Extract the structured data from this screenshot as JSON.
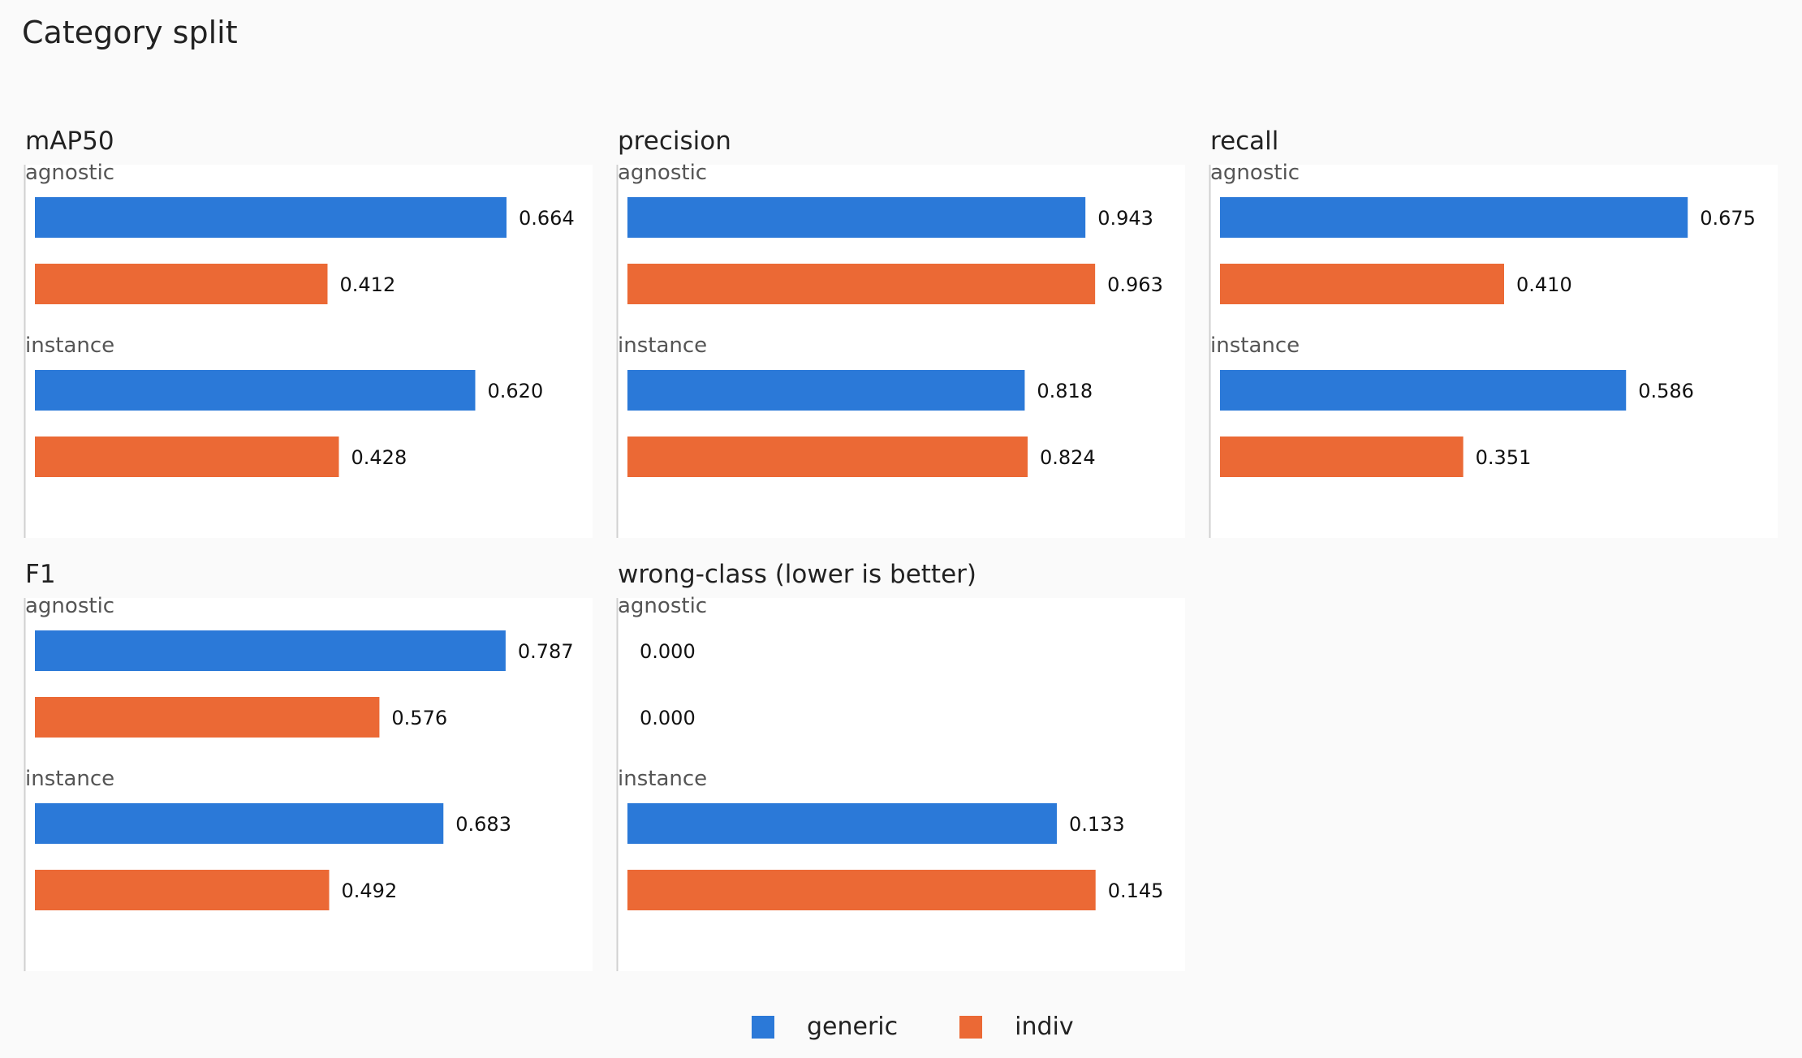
{
  "title": "Category split",
  "colors": {
    "generic": "#2b79d8",
    "indiv": "#eb6935",
    "panel_bg": "#ffffff",
    "page_bg": "#fafafa",
    "axis": "#d0d0d0",
    "group_label": "#555555",
    "value_label": "#111111"
  },
  "legend": {
    "items": [
      {
        "name": "generic",
        "color": "#2b79d8"
      },
      {
        "name": "indiv",
        "color": "#eb6935"
      }
    ]
  },
  "chart_data": [
    {
      "type": "bar",
      "orientation": "horizontal",
      "title": "mAP50",
      "categories": [
        "agnostic",
        "instance"
      ],
      "series": [
        {
          "name": "generic",
          "values": [
            0.664,
            0.62
          ]
        },
        {
          "name": "indiv",
          "values": [
            0.412,
            0.428
          ]
        }
      ],
      "labels": [
        [
          "0.664",
          "0.412"
        ],
        [
          "0.620",
          "0.428"
        ]
      ],
      "xlim": [
        0,
        0.8
      ]
    },
    {
      "type": "bar",
      "orientation": "horizontal",
      "title": "precision",
      "categories": [
        "agnostic",
        "instance"
      ],
      "series": [
        {
          "name": "generic",
          "values": [
            0.943,
            0.818
          ]
        },
        {
          "name": "indiv",
          "values": [
            0.963,
            0.824
          ]
        }
      ],
      "labels": [
        [
          "0.943",
          "0.963"
        ],
        [
          "0.818",
          "0.824"
        ]
      ],
      "xlim": [
        0,
        1.17
      ]
    },
    {
      "type": "bar",
      "orientation": "horizontal",
      "title": "recall",
      "categories": [
        "agnostic",
        "instance"
      ],
      "series": [
        {
          "name": "generic",
          "values": [
            0.675,
            0.586
          ]
        },
        {
          "name": "indiv",
          "values": [
            0.41,
            0.351
          ]
        }
      ],
      "labels": [
        [
          "0.675",
          "0.410"
        ],
        [
          "0.586",
          "0.351"
        ]
      ],
      "xlim": [
        0,
        0.82
      ]
    },
    {
      "type": "bar",
      "orientation": "horizontal",
      "title": "F1",
      "categories": [
        "agnostic",
        "instance"
      ],
      "series": [
        {
          "name": "generic",
          "values": [
            0.787,
            0.683
          ]
        },
        {
          "name": "indiv",
          "values": [
            0.576,
            0.492
          ]
        }
      ],
      "labels": [
        [
          "0.787",
          "0.576"
        ],
        [
          "0.683",
          "0.492"
        ]
      ],
      "xlim": [
        0,
        0.95
      ]
    },
    {
      "type": "bar",
      "orientation": "horizontal",
      "title": "wrong-class  (lower is better)",
      "categories": [
        "agnostic",
        "instance"
      ],
      "series": [
        {
          "name": "generic",
          "values": [
            0.0,
            0.133
          ]
        },
        {
          "name": "indiv",
          "values": [
            0.0,
            0.145
          ]
        }
      ],
      "labels": [
        [
          "0.000",
          "0.000"
        ],
        [
          "0.133",
          "0.145"
        ]
      ],
      "xlim": [
        0,
        0.176
      ]
    }
  ]
}
